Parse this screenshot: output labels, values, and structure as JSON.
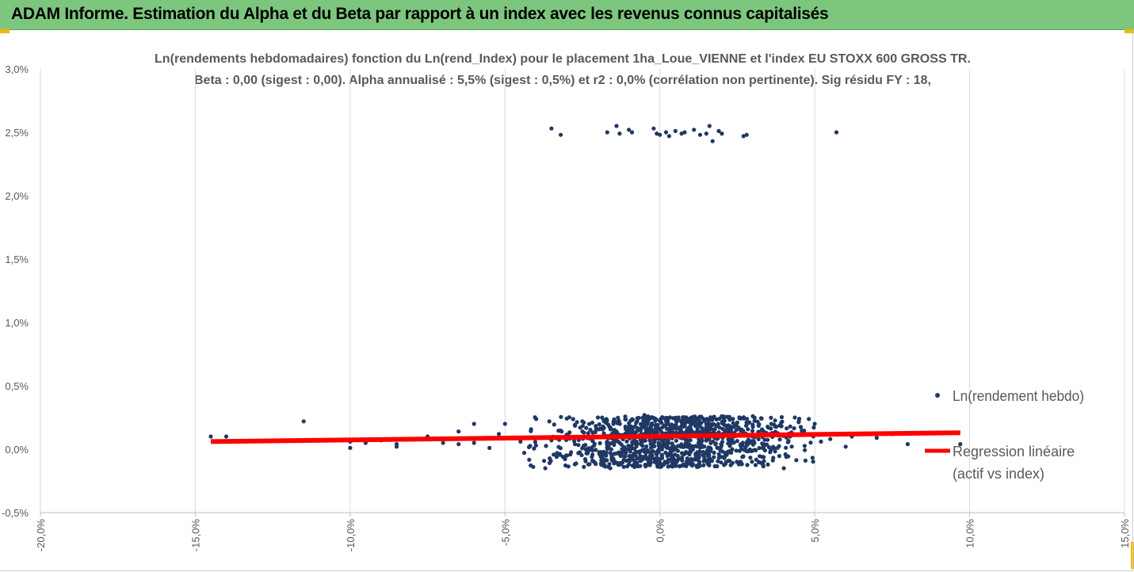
{
  "header": {
    "title": "ADAM Informe. Estimation du Alpha et du Beta par rapport à un index avec les revenus connus capitalisés"
  },
  "chart_data": {
    "type": "scatter",
    "title": "Ln(rendements hebdomadaires) fonction du Ln(rend_Index) pour le placement 1ha_Loue_VIENNE et l'index EU STOXX 600 GROSS TR.",
    "subtitle": "Beta : 0,00 (sigest : 0,00). Alpha annualisé : 5,5% (sigest : 0,5%) et r2 : 0,0% (corrélation non pertinente). Sig résidu FY : 18,",
    "xlabel": "",
    "ylabel": "",
    "xlim": [
      -20,
      15
    ],
    "ylim": [
      -0.5,
      3.0
    ],
    "x_ticks": [
      "-20,0%",
      "-15,0%",
      "-10,0%",
      "-5,0%",
      "0,0%",
      "5,0%",
      "10,0%",
      "15,0%"
    ],
    "y_ticks": [
      "-0,5%",
      "0,0%",
      "0,5%",
      "1,0%",
      "1,5%",
      "2,0%",
      "2,5%",
      "3,0%"
    ],
    "grid": "vertical",
    "legend_position": "right",
    "series": [
      {
        "name": "Ln(rendement hebdo)",
        "type": "scatter",
        "color": "#1f3864",
        "points": [
          [
            -14.5,
            0.1
          ],
          [
            -14.0,
            0.1
          ],
          [
            -11.5,
            0.22
          ],
          [
            -10.0,
            0.01
          ],
          [
            -10.0,
            0.06
          ],
          [
            -9.5,
            0.05
          ],
          [
            -9.0,
            0.07
          ],
          [
            -8.5,
            0.02
          ],
          [
            -8.5,
            0.04
          ],
          [
            -7.5,
            0.1
          ],
          [
            -7.0,
            0.05
          ],
          [
            -6.5,
            0.14
          ],
          [
            -6.5,
            0.04
          ],
          [
            -6.0,
            0.2
          ],
          [
            -6.0,
            0.05
          ],
          [
            -5.5,
            0.01
          ],
          [
            -5.2,
            0.12
          ],
          [
            -5.0,
            0.2
          ],
          [
            -4.5,
            0.06
          ],
          [
            -4.0,
            0.03
          ],
          [
            -3.7,
            -0.15
          ],
          [
            -3.5,
            0.07
          ],
          [
            -3.0,
            -0.05
          ],
          [
            -2.5,
            0.14
          ],
          [
            -2.0,
            0.25
          ],
          [
            -1.8,
            -0.08
          ],
          [
            -1.6,
            -0.15
          ],
          [
            -1.5,
            0.2
          ],
          [
            -1.3,
            0.05
          ],
          [
            -1.0,
            -0.12
          ],
          [
            -0.8,
            0.18
          ],
          [
            -0.5,
            0.27
          ],
          [
            -0.3,
            -0.1
          ],
          [
            0.0,
            -0.14
          ],
          [
            0.2,
            0.22
          ],
          [
            0.4,
            -0.05
          ],
          [
            0.6,
            0.25
          ],
          [
            0.8,
            0.02
          ],
          [
            1.0,
            0.19
          ],
          [
            1.2,
            -0.14
          ],
          [
            1.4,
            0.24
          ],
          [
            1.6,
            -0.1
          ],
          [
            1.8,
            0.12
          ],
          [
            2.0,
            0.26
          ],
          [
            2.2,
            -0.02
          ],
          [
            2.5,
            0.21
          ],
          [
            2.8,
            0.03
          ],
          [
            3.0,
            0.26
          ],
          [
            3.3,
            -0.06
          ],
          [
            3.5,
            0.17
          ],
          [
            3.8,
            0.01
          ],
          [
            4.0,
            -0.15
          ],
          [
            4.2,
            0.1
          ],
          [
            4.5,
            0.24
          ],
          [
            4.7,
            -0.09
          ],
          [
            5.0,
            0.2
          ],
          [
            5.2,
            0.06
          ],
          [
            5.5,
            0.08
          ],
          [
            6.0,
            0.02
          ],
          [
            6.2,
            0.1
          ],
          [
            7.0,
            0.09
          ],
          [
            7.5,
            0.12
          ],
          [
            8.0,
            0.04
          ],
          [
            9.7,
            0.04
          ],
          [
            -3.5,
            2.53
          ],
          [
            -3.2,
            2.48
          ],
          [
            -1.7,
            2.5
          ],
          [
            -1.4,
            2.55
          ],
          [
            -1.3,
            2.49
          ],
          [
            -1.0,
            2.52
          ],
          [
            -0.9,
            2.5
          ],
          [
            -0.2,
            2.53
          ],
          [
            -0.1,
            2.49
          ],
          [
            0.0,
            2.48
          ],
          [
            0.2,
            2.5
          ],
          [
            0.3,
            2.47
          ],
          [
            0.5,
            2.51
          ],
          [
            0.7,
            2.49
          ],
          [
            0.8,
            2.5
          ],
          [
            1.1,
            2.52
          ],
          [
            1.3,
            2.48
          ],
          [
            1.5,
            2.49
          ],
          [
            1.6,
            2.55
          ],
          [
            1.7,
            2.43
          ],
          [
            1.9,
            2.51
          ],
          [
            2.0,
            2.49
          ],
          [
            2.7,
            2.47
          ],
          [
            2.8,
            2.48
          ],
          [
            5.7,
            2.5
          ]
        ],
        "cluster": {
          "x_mean": 0.4,
          "x_sd": 1.9,
          "y_min": -0.14,
          "y_max": 0.26,
          "count": 1100
        }
      },
      {
        "name": "Regression linéaire (actif vs index)",
        "type": "line",
        "color": "#ff0000",
        "points": [
          [
            -14.5,
            0.06
          ],
          [
            9.7,
            0.13
          ]
        ]
      }
    ]
  }
}
